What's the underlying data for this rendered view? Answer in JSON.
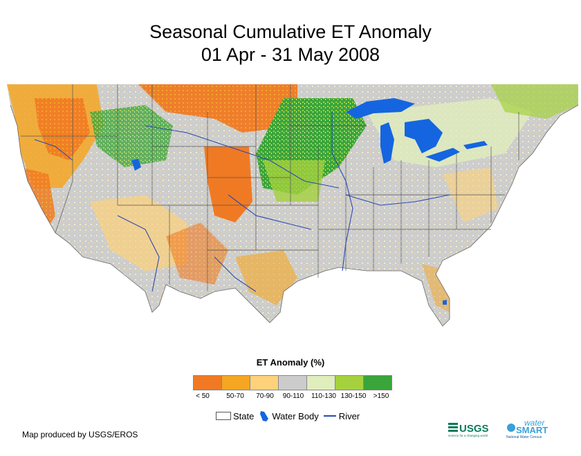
{
  "title": {
    "line1": "Seasonal Cumulative ET Anomaly",
    "line2": "01 Apr - 31 May 2008"
  },
  "legend": {
    "title": "ET Anomaly (%)",
    "classes": [
      {
        "label": "< 50",
        "color": "#f07a24"
      },
      {
        "label": "50-70",
        "color": "#f5a623"
      },
      {
        "label": "70-90",
        "color": "#fdd27a"
      },
      {
        "label": "90-110",
        "color": "#cccccc"
      },
      {
        "label": "110-130",
        "color": "#e0edbd"
      },
      {
        "label": "130-150",
        "color": "#a5d13f"
      },
      {
        "label": ">150",
        "color": "#3aa53a"
      }
    ],
    "keys": {
      "state": "State",
      "water_body": "Water Body",
      "river": "River"
    }
  },
  "colors": {
    "water": "#1565e0",
    "river": "#2a4ab0",
    "state_line": "#555555"
  },
  "credit": "Map produced by USGS/EROS",
  "logos": {
    "usgs": "USGS",
    "usgs_tagline": "science for a changing world",
    "water": "water",
    "smart": "SMART",
    "smart_tagline": "National Water Census"
  }
}
